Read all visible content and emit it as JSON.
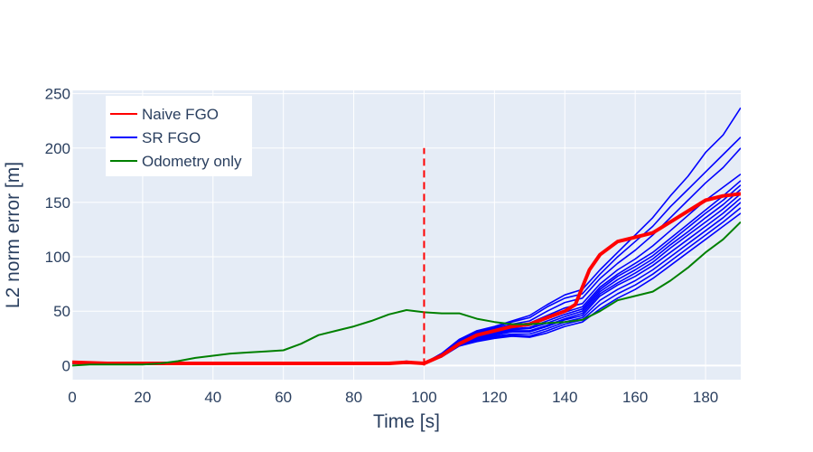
{
  "chart_data": {
    "type": "line",
    "xlabel": "Time [s]",
    "ylabel": "L2 norm error [m]",
    "xlim": [
      0,
      190
    ],
    "ylim": [
      -13,
      253
    ],
    "xticks": [
      0,
      20,
      40,
      60,
      80,
      100,
      120,
      140,
      160,
      180
    ],
    "yticks": [
      0,
      50,
      100,
      150,
      200,
      250
    ],
    "grid": true,
    "legend_position": "top-left",
    "colors": {
      "plot_background": "#e5ecf6",
      "grid": "#ffffff",
      "naive_fgo": "#ff0000",
      "sr_fgo": "#0000ff",
      "odometry": "#008000"
    },
    "legend": [
      {
        "label": "Naive FGO",
        "color": "#ff0000"
      },
      {
        "label": "SR FGO",
        "color": "#0000ff"
      },
      {
        "label": "Odometry only",
        "color": "#008000"
      }
    ],
    "vertical_marker": {
      "x": 100,
      "y_from": 0,
      "y_to": 200,
      "color": "#ff0000",
      "style": "dashed"
    },
    "series": [
      {
        "name": "Odometry only",
        "color": "#008000",
        "x": [
          0,
          5,
          10,
          15,
          20,
          25,
          30,
          35,
          40,
          45,
          50,
          55,
          60,
          65,
          70,
          75,
          80,
          85,
          90,
          95,
          100,
          105,
          110,
          115,
          120,
          125,
          130,
          135,
          140,
          145,
          150,
          155,
          160,
          165,
          170,
          175,
          180,
          185,
          190
        ],
        "y": [
          0,
          1,
          1,
          1,
          1,
          2,
          4,
          7,
          9,
          11,
          12,
          13,
          14,
          20,
          28,
          32,
          36,
          41,
          47,
          51,
          49,
          48,
          48,
          43,
          40,
          38,
          38,
          39,
          40,
          42,
          50,
          60,
          64,
          68,
          78,
          90,
          104,
          116,
          132
        ]
      },
      {
        "name": "Naive FGO",
        "color": "#ff0000",
        "x": [
          0,
          10,
          20,
          30,
          40,
          50,
          60,
          70,
          80,
          90,
          95,
          100,
          105,
          110,
          115,
          120,
          125,
          130,
          135,
          140,
          143,
          147,
          150,
          155,
          160,
          165,
          170,
          175,
          180,
          185,
          190
        ],
        "y": [
          3,
          2,
          2,
          2,
          2,
          2,
          2,
          2,
          2,
          2,
          3,
          2,
          9,
          20,
          28,
          32,
          36,
          38,
          44,
          50,
          56,
          88,
          102,
          114,
          118,
          122,
          132,
          142,
          152,
          156,
          158
        ]
      },
      {
        "name": "SR FGO",
        "color": "#0000ff",
        "x": [
          0,
          10,
          20,
          30,
          40,
          50,
          60,
          70,
          80,
          90,
          95,
          100,
          105,
          110,
          115,
          120,
          125,
          130,
          135,
          140,
          145,
          150,
          155,
          160,
          165,
          170,
          175,
          180,
          185,
          190
        ],
        "runs_y": [
          [
            2,
            2,
            2,
            2,
            2,
            2,
            2,
            2,
            2,
            2,
            3,
            2,
            8,
            18,
            22,
            25,
            27,
            26,
            30,
            36,
            40,
            52,
            62,
            70,
            80,
            92,
            104,
            116,
            128,
            140
          ],
          [
            2,
            2,
            1,
            2,
            1,
            2,
            2,
            1,
            2,
            2,
            2,
            2,
            8,
            18,
            23,
            26,
            28,
            27,
            32,
            38,
            42,
            56,
            66,
            74,
            84,
            96,
            108,
            120,
            132,
            145
          ],
          [
            3,
            2,
            2,
            2,
            2,
            3,
            2,
            2,
            2,
            3,
            3,
            2,
            9,
            19,
            24,
            27,
            29,
            29,
            34,
            40,
            44,
            60,
            70,
            78,
            88,
            100,
            112,
            124,
            136,
            150
          ],
          [
            2,
            3,
            2,
            1,
            2,
            2,
            3,
            2,
            1,
            2,
            3,
            2,
            9,
            20,
            25,
            28,
            31,
            31,
            36,
            42,
            46,
            64,
            74,
            82,
            92,
            104,
            116,
            128,
            140,
            154
          ],
          [
            2,
            2,
            2,
            2,
            2,
            2,
            2,
            2,
            2,
            2,
            2,
            2,
            9,
            20,
            26,
            29,
            32,
            32,
            37,
            43,
            48,
            66,
            76,
            85,
            95,
            108,
            120,
            132,
            144,
            158
          ],
          [
            3,
            2,
            2,
            2,
            3,
            2,
            2,
            3,
            2,
            2,
            4,
            2,
            10,
            21,
            27,
            30,
            33,
            34,
            39,
            45,
            50,
            68,
            79,
            88,
            98,
            111,
            123,
            136,
            148,
            162
          ],
          [
            2,
            2,
            2,
            2,
            2,
            2,
            2,
            2,
            2,
            2,
            3,
            2,
            10,
            21,
            27,
            31,
            34,
            35,
            41,
            47,
            52,
            70,
            82,
            91,
            101,
            114,
            127,
            140,
            152,
            166
          ],
          [
            2,
            2,
            3,
            2,
            2,
            2,
            2,
            2,
            2,
            2,
            3,
            2,
            10,
            22,
            28,
            32,
            35,
            37,
            43,
            49,
            54,
            72,
            84,
            94,
            104,
            117,
            130,
            143,
            156,
            170
          ],
          [
            2,
            2,
            2,
            2,
            2,
            2,
            2,
            2,
            2,
            2,
            3,
            2,
            10,
            22,
            29,
            33,
            37,
            39,
            46,
            53,
            57,
            75,
            88,
            98,
            110,
            124,
            138,
            152,
            164,
            176
          ],
          [
            3,
            2,
            2,
            2,
            2,
            2,
            2,
            2,
            2,
            2,
            3,
            2,
            11,
            23,
            30,
            34,
            38,
            41,
            50,
            58,
            62,
            80,
            94,
            106,
            120,
            136,
            152,
            168,
            182,
            200
          ],
          [
            2,
            2,
            2,
            2,
            2,
            2,
            2,
            2,
            2,
            2,
            3,
            2,
            11,
            24,
            31,
            35,
            40,
            44,
            54,
            62,
            66,
            84,
            100,
            114,
            128,
            146,
            162,
            178,
            194,
            210
          ],
          [
            2,
            2,
            2,
            2,
            2,
            2,
            2,
            2,
            2,
            2,
            3,
            2,
            11,
            24,
            32,
            36,
            41,
            46,
            56,
            65,
            70,
            88,
            104,
            120,
            136,
            156,
            174,
            196,
            212,
            237
          ]
        ]
      }
    ]
  }
}
